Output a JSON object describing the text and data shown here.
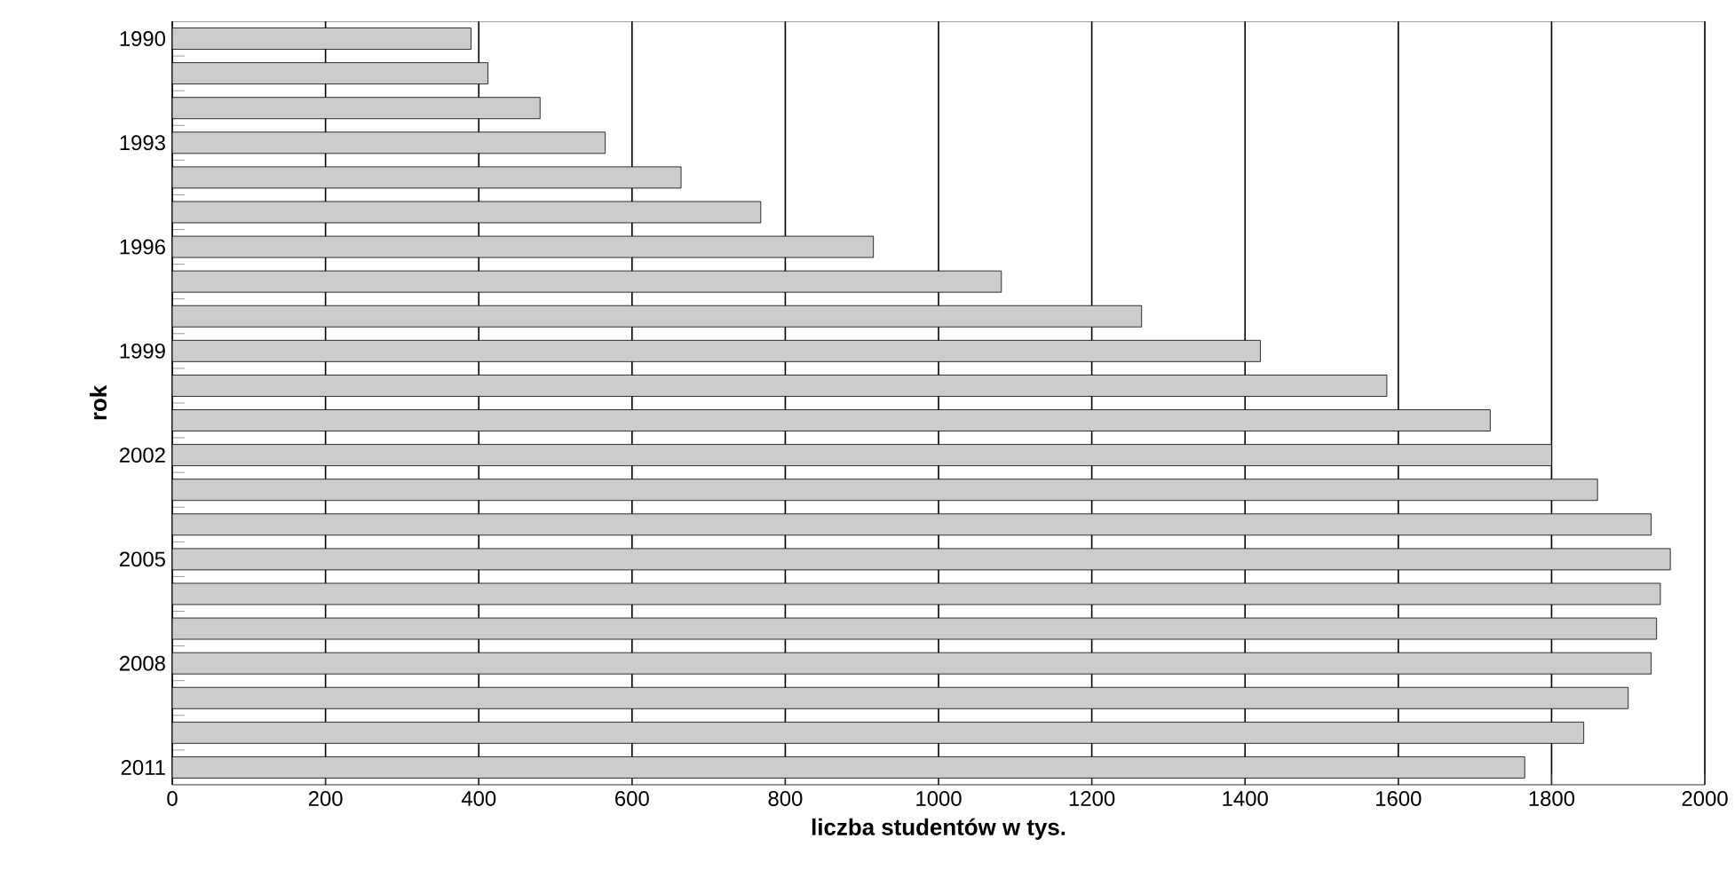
{
  "chart_data": {
    "type": "bar",
    "orientation": "horizontal",
    "xlabel": "liczba studentów w tys.",
    "ylabel": "rok",
    "categories": [
      "1990",
      null,
      null,
      "1993",
      null,
      null,
      "1996",
      null,
      null,
      "1999",
      null,
      null,
      "2002",
      null,
      null,
      "2005",
      null,
      null,
      "2008",
      null,
      null,
      "2011"
    ],
    "values": [
      390,
      412,
      480,
      565,
      664,
      768,
      915,
      1082,
      1265,
      1420,
      1585,
      1720,
      1800,
      1860,
      1930,
      1955,
      1942,
      1937,
      1930,
      1900,
      1842,
      1765
    ],
    "color": "#cccccc",
    "xlim": [
      0,
      2000
    ],
    "xticks": [
      0,
      200,
      400,
      600,
      800,
      1000,
      1200,
      1400,
      1600,
      1800,
      2000
    ],
    "grid": "x"
  }
}
